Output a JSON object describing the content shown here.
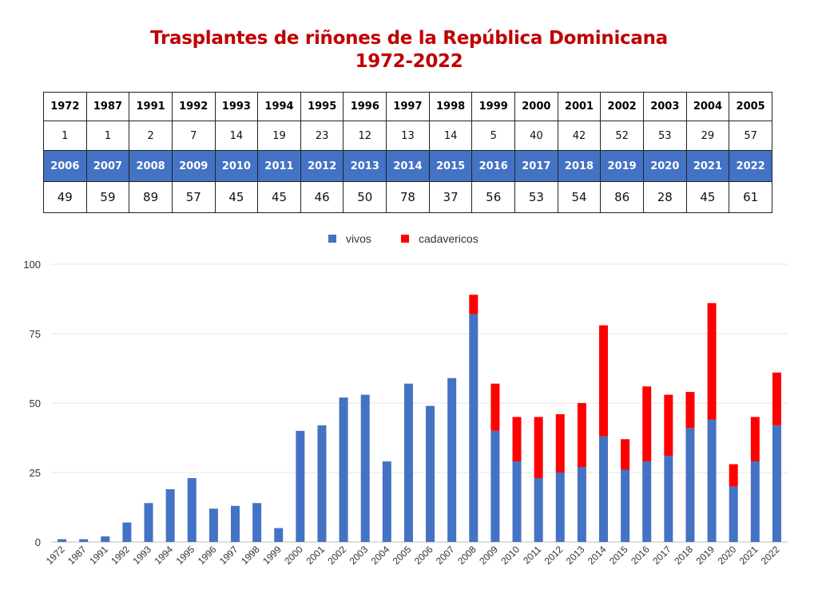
{
  "title_line1": "Trasplantes de riñones de la República Dominicana",
  "title_line2": "1972-2022",
  "table": {
    "row1_years": [
      "1972",
      "1987",
      "1991",
      "1992",
      "1993",
      "1994",
      "1995",
      "1996",
      "1997",
      "1998",
      "1999",
      "2000",
      "2001",
      "2002",
      "2003",
      "2004",
      "2005"
    ],
    "row1_values": [
      "1",
      "1",
      "2",
      "7",
      "14",
      "19",
      "23",
      "12",
      "13",
      "14",
      "5",
      "40",
      "42",
      "52",
      "53",
      "29",
      "57"
    ],
    "row2_years": [
      "2006",
      "2007",
      "2008",
      "2009",
      "2010",
      "2011",
      "2012",
      "2013",
      "2014",
      "2015",
      "2016",
      "2017",
      "2018",
      "2019",
      "2020",
      "2021",
      "2022"
    ],
    "row2_values": [
      "49",
      "59",
      "89",
      "57",
      "45",
      "45",
      "46",
      "50",
      "78",
      "37",
      "56",
      "53",
      "54",
      "86",
      "28",
      "45",
      "61"
    ]
  },
  "colors": {
    "title": "#c00000",
    "header_blue": "#4472c4",
    "vivos": "#4472c4",
    "cadavericos": "#ff0000"
  },
  "chart_data": {
    "type": "bar",
    "stacked": true,
    "title": "Trasplantes de riñones de la República Dominicana 1972-2022",
    "xlabel": "",
    "ylabel": "",
    "ylim": [
      0,
      100
    ],
    "yticks": [
      0,
      25,
      50,
      75,
      100
    ],
    "grid": true,
    "legend_position": "top-center",
    "categories": [
      "1972",
      "1987",
      "1991",
      "1992",
      "1993",
      "1994",
      "1995",
      "1996",
      "1997",
      "1998",
      "1999",
      "2000",
      "2001",
      "2002",
      "2003",
      "2004",
      "2005",
      "2006",
      "2007",
      "2008",
      "2009",
      "2010",
      "2011",
      "2012",
      "2013",
      "2014",
      "2015",
      "2016",
      "2017",
      "2018",
      "2019",
      "2020",
      "2021",
      "2022"
    ],
    "series": [
      {
        "name": "vivos",
        "color": "#4472c4",
        "values": [
          1,
          1,
          2,
          7,
          14,
          19,
          23,
          12,
          13,
          14,
          5,
          40,
          42,
          52,
          53,
          29,
          57,
          49,
          59,
          82,
          40,
          29,
          23,
          25,
          27,
          38,
          26,
          29,
          31,
          41,
          44,
          20,
          29,
          42
        ]
      },
      {
        "name": "cadavericos",
        "color": "#ff0000",
        "values": [
          0,
          0,
          0,
          0,
          0,
          0,
          0,
          0,
          0,
          0,
          0,
          0,
          0,
          0,
          0,
          0,
          0,
          0,
          0,
          7,
          17,
          16,
          22,
          21,
          23,
          40,
          11,
          27,
          22,
          13,
          42,
          8,
          16,
          19
        ]
      }
    ]
  }
}
